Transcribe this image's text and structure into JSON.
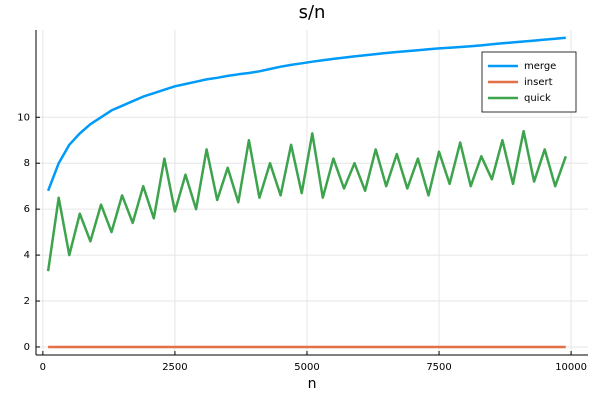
{
  "chart_data": {
    "type": "line",
    "title": "s/n",
    "x_label": "n",
    "x": [
      100,
      300,
      500,
      700,
      900,
      1100,
      1300,
      1500,
      1700,
      1900,
      2100,
      2300,
      2500,
      2700,
      2900,
      3100,
      3300,
      3500,
      3700,
      3900,
      4100,
      4300,
      4500,
      4700,
      4900,
      5100,
      5300,
      5500,
      5700,
      5900,
      6100,
      6300,
      6500,
      6700,
      6900,
      7100,
      7300,
      7500,
      7700,
      7900,
      8100,
      8300,
      8500,
      8700,
      8900,
      9100,
      9300,
      9500,
      9700,
      9900
    ],
    "series": [
      {
        "name": "merge",
        "color": "#009af9",
        "values": [
          6.8,
          8.0,
          8.8,
          9.3,
          9.7,
          10.0,
          10.3,
          10.5,
          10.7,
          10.9,
          11.05,
          11.2,
          11.35,
          11.45,
          11.55,
          11.65,
          11.72,
          11.8,
          11.87,
          11.93,
          12.0,
          12.1,
          12.2,
          12.28,
          12.35,
          12.42,
          12.48,
          12.54,
          12.6,
          12.65,
          12.7,
          12.75,
          12.8,
          12.84,
          12.88,
          12.92,
          12.96,
          13.0,
          13.03,
          13.06,
          13.09,
          13.13,
          13.18,
          13.22,
          13.26,
          13.3,
          13.34,
          13.38,
          13.42,
          13.46
        ]
      },
      {
        "name": "insert",
        "color": "#e26f46",
        "values": [
          0,
          0,
          0,
          0,
          0,
          0,
          0,
          0,
          0,
          0,
          0,
          0,
          0,
          0,
          0,
          0,
          0,
          0,
          0,
          0,
          0,
          0,
          0,
          0,
          0,
          0,
          0,
          0,
          0,
          0,
          0,
          0,
          0,
          0,
          0,
          0,
          0,
          0,
          0,
          0,
          0,
          0,
          0,
          0,
          0,
          0,
          0,
          0,
          0,
          0
        ]
      },
      {
        "name": "quick",
        "color": "#3da44d",
        "values": [
          3.3,
          6.5,
          4.0,
          5.8,
          4.6,
          6.2,
          5.0,
          6.6,
          5.4,
          7.0,
          5.6,
          8.2,
          5.9,
          7.5,
          6.0,
          8.6,
          6.4,
          7.8,
          6.3,
          9.0,
          6.5,
          8.0,
          6.6,
          8.8,
          6.7,
          9.3,
          6.5,
          8.2,
          6.9,
          8.0,
          6.8,
          8.6,
          7.0,
          8.4,
          6.9,
          8.2,
          6.6,
          8.5,
          7.1,
          8.9,
          7.0,
          8.3,
          7.3,
          9.0,
          7.1,
          9.4,
          7.2,
          8.6,
          7.0,
          8.3
        ]
      }
    ],
    "xlim": [
      -130,
      10320
    ],
    "ylim": [
      -0.35,
      13.8
    ],
    "xticks": [
      0,
      2500,
      5000,
      7500,
      10000
    ],
    "yticks": [
      0,
      2,
      4,
      6,
      8,
      10
    ],
    "grid": true,
    "legend": "top-right"
  }
}
